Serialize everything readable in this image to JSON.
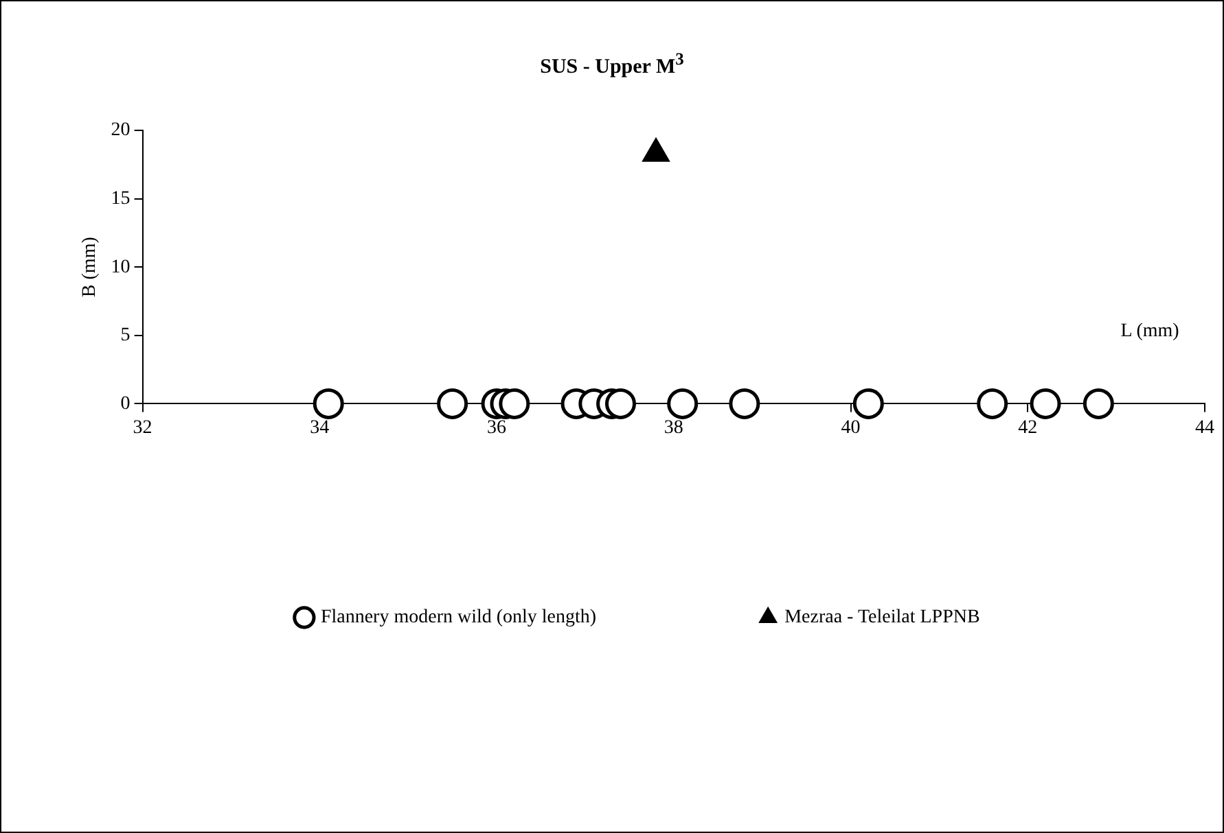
{
  "chart_data": {
    "type": "scatter",
    "title": "SUS - Upper M$^{3}$",
    "xlabel": "L (mm)",
    "ylabel": "B (mm)",
    "xlim": [
      32,
      44
    ],
    "xticks": [
      32,
      34,
      36,
      38,
      40,
      42,
      44
    ],
    "ylim": [
      0,
      20
    ],
    "yticks": [
      0,
      5,
      10,
      15,
      20
    ],
    "grid": false,
    "legend": "bottom",
    "series": [
      {
        "name": "Flannery modern wild (only length)",
        "color": "#000000",
        "marker": "circle",
        "x": [
          34.1,
          35.5,
          36.0,
          36.1,
          36.2,
          36.9,
          37.1,
          37.3,
          37.4,
          38.1,
          38.8,
          40.2,
          41.6,
          42.2,
          42.8
        ],
        "values": [
          0,
          0,
          0,
          0,
          0,
          0,
          0,
          0,
          0,
          0,
          0,
          0,
          0,
          0,
          0
        ]
      },
      {
        "name": "Mezraa - Teleilat LPPNB",
        "color": "#000000",
        "marker": "triangle",
        "x": [
          37.8
        ],
        "values": [
          18.3
        ]
      }
    ]
  }
}
